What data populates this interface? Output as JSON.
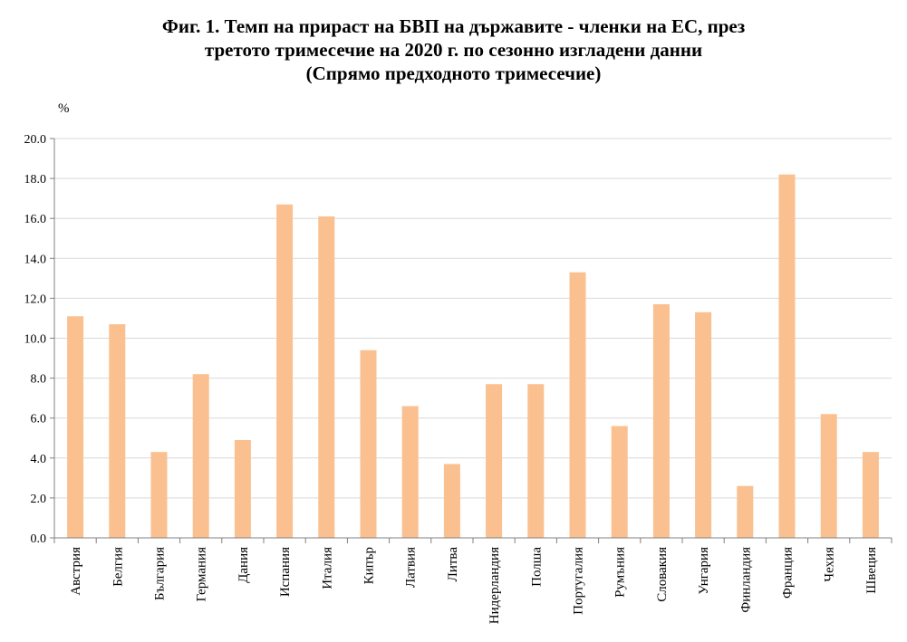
{
  "chart_data": {
    "type": "bar",
    "title_lines": [
      "Фиг. 1. Темп на прираст на БВП на държавите - членки на ЕС, през",
      "третото тримесечие на 2020 г. по сезонно изгладени данни",
      "(Спрямо предходното тримесечие)"
    ],
    "ylabel": "%",
    "xlabel": "",
    "ylim": [
      0,
      20
    ],
    "yticks": [
      "0.0",
      "2.0",
      "4.0",
      "6.0",
      "8.0",
      "10.0",
      "12.0",
      "14.0",
      "16.0",
      "18.0",
      "20.0"
    ],
    "grid": true,
    "legend": "none",
    "bar_color": "#FAC090",
    "categories": [
      "Австрия",
      "Белгия",
      "България",
      "Германия",
      "Дания",
      "Испания",
      "Италия",
      "Кипър",
      "Латвия",
      "Литва",
      "Нидерландия",
      "Полша",
      "Португалия",
      "Румъния",
      "Словакия",
      "Унгария",
      "Финландия",
      "Франция",
      "Чехия",
      "Швеция"
    ],
    "values": [
      11.1,
      10.7,
      4.3,
      8.2,
      4.9,
      16.7,
      16.1,
      9.4,
      6.6,
      3.7,
      7.7,
      7.7,
      13.3,
      5.6,
      11.7,
      11.3,
      2.6,
      18.2,
      6.2,
      4.3
    ]
  }
}
